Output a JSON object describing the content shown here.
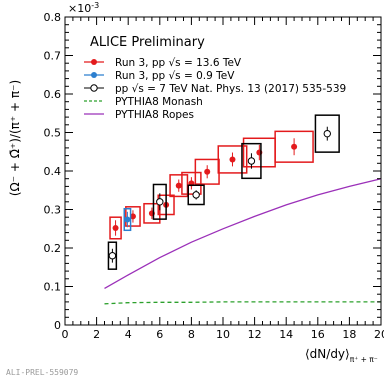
{
  "footer": {
    "label": "ALI-PREL-559079"
  },
  "chart_data": {
    "type": "scatter",
    "title": "ALICE Preliminary",
    "exponent_label": "×10",
    "exponent_power": "-3",
    "ylabel": "(Ω⁻ + Ω̄⁺)/(π⁺ + π⁻)",
    "xlabel": "⟨dN/dy⟩",
    "xlabel_sub": "π⁺ + π⁻",
    "xlim": [
      0,
      20
    ],
    "ylim": [
      0,
      0.8
    ],
    "x_ticks": [
      "0",
      "2",
      "4",
      "6",
      "8",
      "10",
      "12",
      "14",
      "16",
      "18",
      "20"
    ],
    "y_ticks": [
      "0",
      "0.1",
      "0.2",
      "0.3",
      "0.4",
      "0.5",
      "0.6",
      "0.7",
      "0.8"
    ],
    "grid": false,
    "legend_position": "top-left",
    "series": [
      {
        "name": "Run 3, pp √s = 13.6 TeV",
        "color": "#e31a1c",
        "marker": "filled-circle",
        "x": [
          3.2,
          4.3,
          5.5,
          6.4,
          7.2,
          8.0,
          9.0,
          10.6,
          12.3,
          14.5
        ],
        "y": [
          0.252,
          0.282,
          0.29,
          0.312,
          0.362,
          0.368,
          0.398,
          0.43,
          0.448,
          0.463
        ],
        "sys_half_width": [
          0.35,
          0.45,
          0.5,
          0.5,
          0.55,
          0.6,
          0.75,
          0.9,
          1.0,
          1.2
        ],
        "sys_half_height": [
          0.028,
          0.025,
          0.025,
          0.025,
          0.028,
          0.028,
          0.032,
          0.035,
          0.037,
          0.04
        ],
        "stat_err": [
          0.02,
          0.016,
          0.015,
          0.014,
          0.016,
          0.016,
          0.017,
          0.018,
          0.02,
          0.022
        ]
      },
      {
        "name": "Run 3, pp √s = 0.9 TeV",
        "color": "#2c7fcf",
        "marker": "filled-circle",
        "x": [
          3.95
        ],
        "y": [
          0.274
        ],
        "sys_half_width": [
          0.2
        ],
        "sys_half_height": [
          0.028
        ],
        "stat_err": [
          0.02
        ]
      },
      {
        "name": "pp √s = 7 TeV Nat. Phys. 13 (2017) 535-539",
        "color": "#000000",
        "marker": "open-circle",
        "x": [
          3.0,
          6.0,
          8.3,
          11.8,
          16.6
        ],
        "y": [
          0.18,
          0.32,
          0.338,
          0.426,
          0.497
        ],
        "sys_half_width": [
          0.25,
          0.4,
          0.5,
          0.6,
          0.75
        ],
        "sys_half_height": [
          0.035,
          0.045,
          0.025,
          0.045,
          0.048
        ],
        "stat_err": [
          0.018,
          0.022,
          0.012,
          0.02,
          0.018
        ]
      },
      {
        "name": "PYTHIA8 Monash",
        "color": "#2ca02c",
        "line_style": "dashed",
        "x": [
          2.5,
          4,
          6,
          8,
          10,
          12,
          14,
          16,
          18,
          20
        ],
        "y": [
          0.055,
          0.058,
          0.059,
          0.059,
          0.06,
          0.06,
          0.06,
          0.06,
          0.06,
          0.06
        ]
      },
      {
        "name": "PYTHIA8 Ropes",
        "color": "#9b30b9",
        "line_style": "solid",
        "x": [
          2.5,
          4,
          6,
          8,
          10,
          12,
          14,
          16,
          18,
          20
        ],
        "y": [
          0.095,
          0.13,
          0.175,
          0.215,
          0.25,
          0.282,
          0.312,
          0.338,
          0.36,
          0.38
        ]
      }
    ]
  }
}
